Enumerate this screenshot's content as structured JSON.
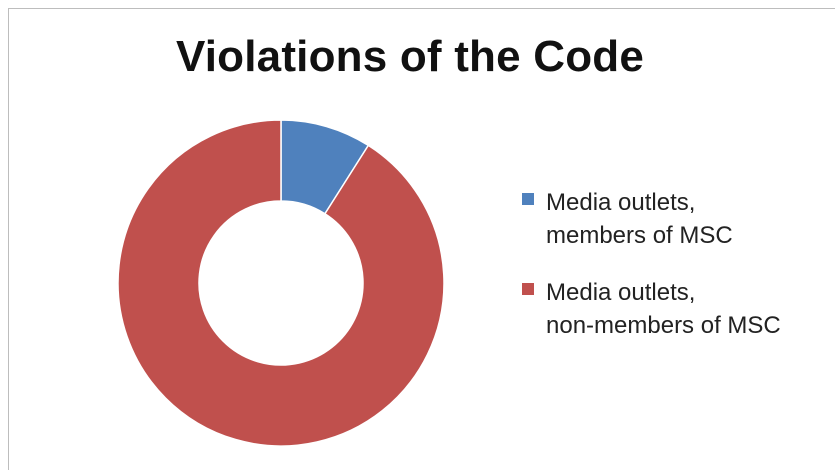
{
  "chart_data": {
    "type": "pie",
    "variant": "doughnut",
    "title": "Violations of the Code",
    "categories": [
      "Media outlets,\nmembers of MSC",
      "Media outlets,\nnon-members of MSC"
    ],
    "values": [
      9,
      91
    ],
    "colors": [
      "#4f81bd",
      "#c0504d"
    ],
    "legend_position": "right"
  }
}
